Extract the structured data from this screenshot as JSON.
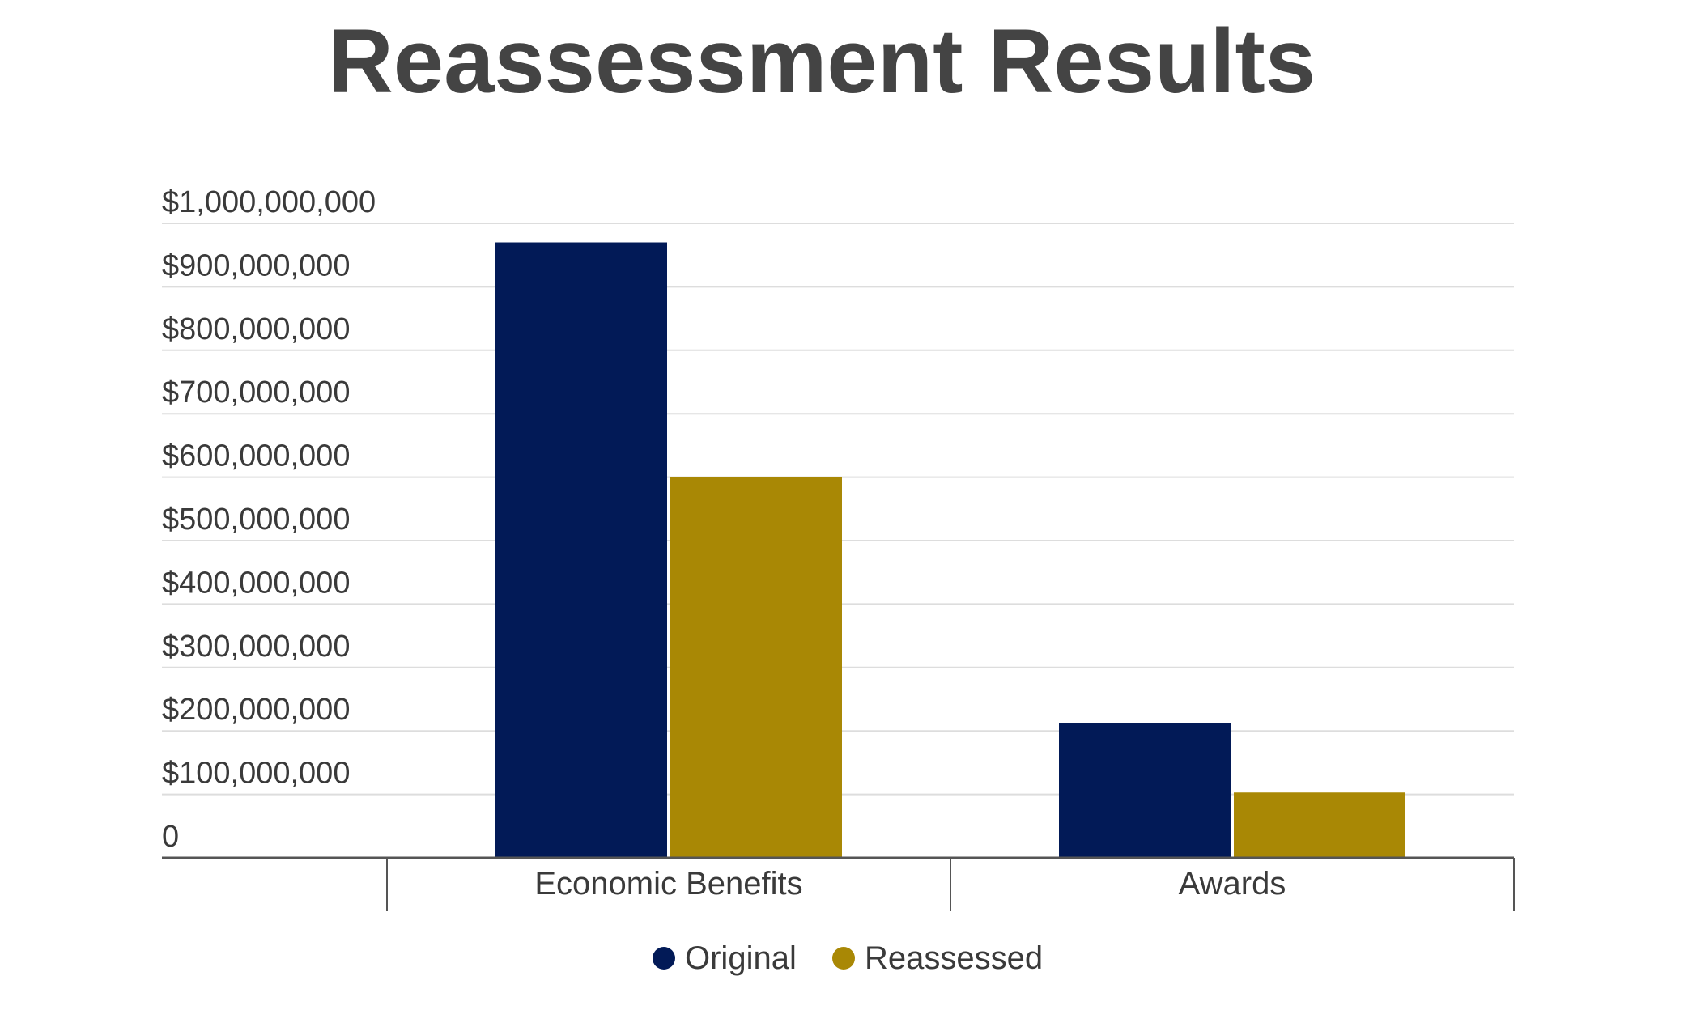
{
  "chart_data": {
    "type": "bar",
    "title": "Reassessment Results",
    "xlabel": "",
    "ylabel": "",
    "categories": [
      "Economic Benefits",
      "Awards"
    ],
    "series": [
      {
        "name": "Original",
        "values": [
          970000000,
          213000000
        ]
      },
      {
        "name": "Reassessed",
        "values": [
          600000000,
          103000000
        ]
      }
    ],
    "ylim": [
      0,
      1000000000
    ],
    "yticks": [
      0,
      100000000,
      200000000,
      300000000,
      400000000,
      500000000,
      600000000,
      700000000,
      800000000,
      900000000,
      1000000000
    ],
    "ytick_labels": [
      "0",
      "$100,000,000",
      "$200,000,000",
      "$300,000,000",
      "$400,000,000",
      "$500,000,000",
      "$600,000,000",
      "$700,000,000",
      "$800,000,000",
      "$900,000,000",
      "$1,000,000,000"
    ],
    "grid": true,
    "legend_position": "bottom-center",
    "colors": {
      "Original": "#021a57",
      "Reassessed": "#a98805",
      "grid": "#dddddd",
      "axis": "#555555"
    }
  }
}
